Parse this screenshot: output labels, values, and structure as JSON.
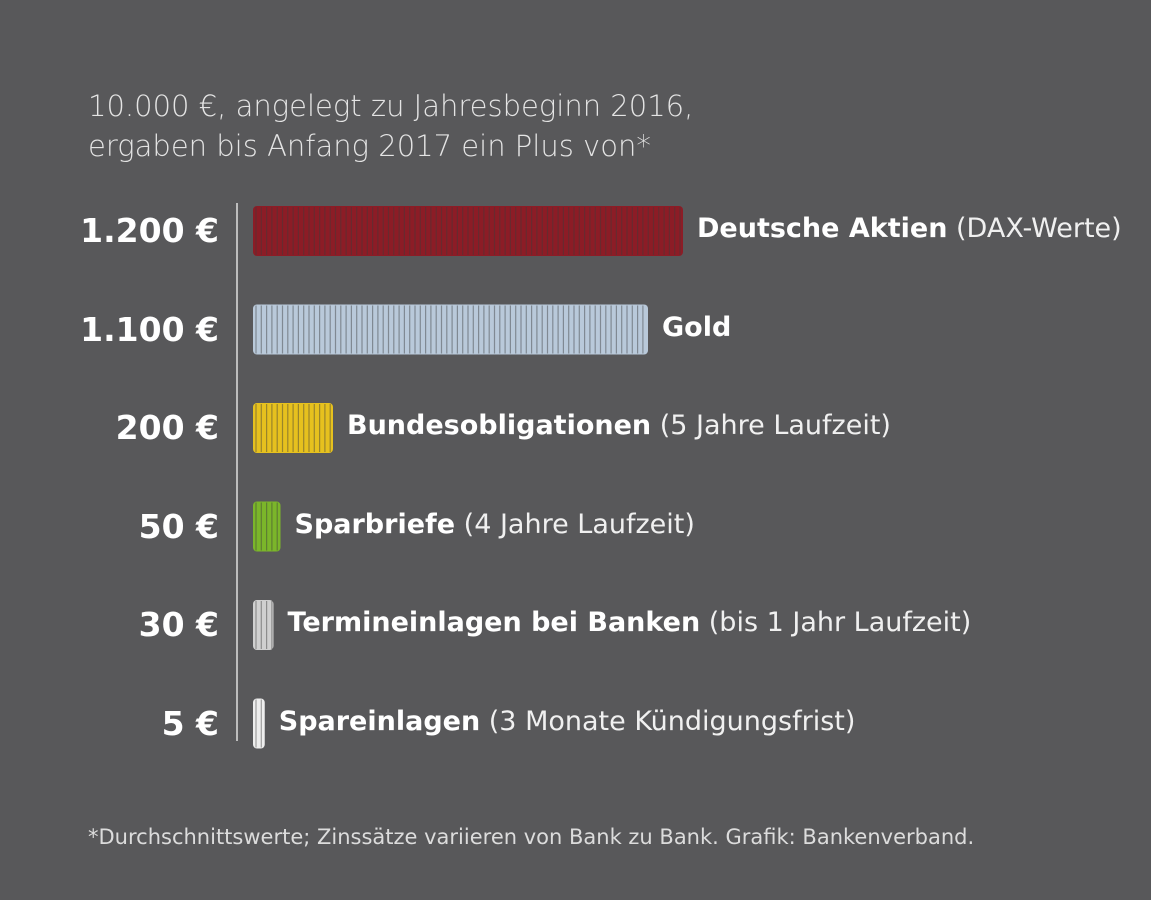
{
  "chart_data": {
    "type": "bar",
    "orientation": "horizontal",
    "title": [
      "10.000 €, angelegt zu Jahresbeginn 2016,",
      "ergaben bis Anfang 2017 ein Plus von*"
    ],
    "categories": [
      {
        "name": "Deutsche Aktien",
        "detail": "(DAX-Werte)"
      },
      {
        "name": "Gold",
        "detail": ""
      },
      {
        "name": "Bundesobligationen",
        "detail": "(5 Jahre Laufzeit)"
      },
      {
        "name": "Sparbriefe",
        "detail": "(4 Jahre Laufzeit)"
      },
      {
        "name": "Termineinlagen bei Banken",
        "detail": "(bis 1 Jahr Laufzeit)"
      },
      {
        "name": "Spareinlagen",
        "detail": "(3 Monate Kündigungsfrist)"
      }
    ],
    "values": [
      1200,
      1100,
      200,
      50,
      30,
      5
    ],
    "value_labels": [
      "1.200 €",
      "1.100 €",
      "200 €",
      "50 €",
      "30 €",
      "5 €"
    ],
    "colors": [
      "#8c1c26",
      "#b9c9da",
      "#e6c11e",
      "#7bb62a",
      "#d0d0d0",
      "#eeeeee"
    ],
    "bar_style": "coin-stacks",
    "unit": "€",
    "grid": false,
    "footnote": "*Durchschnittswerte; Zinssätze variieren von Bank zu Bank. Grafik: Bankenverband."
  }
}
